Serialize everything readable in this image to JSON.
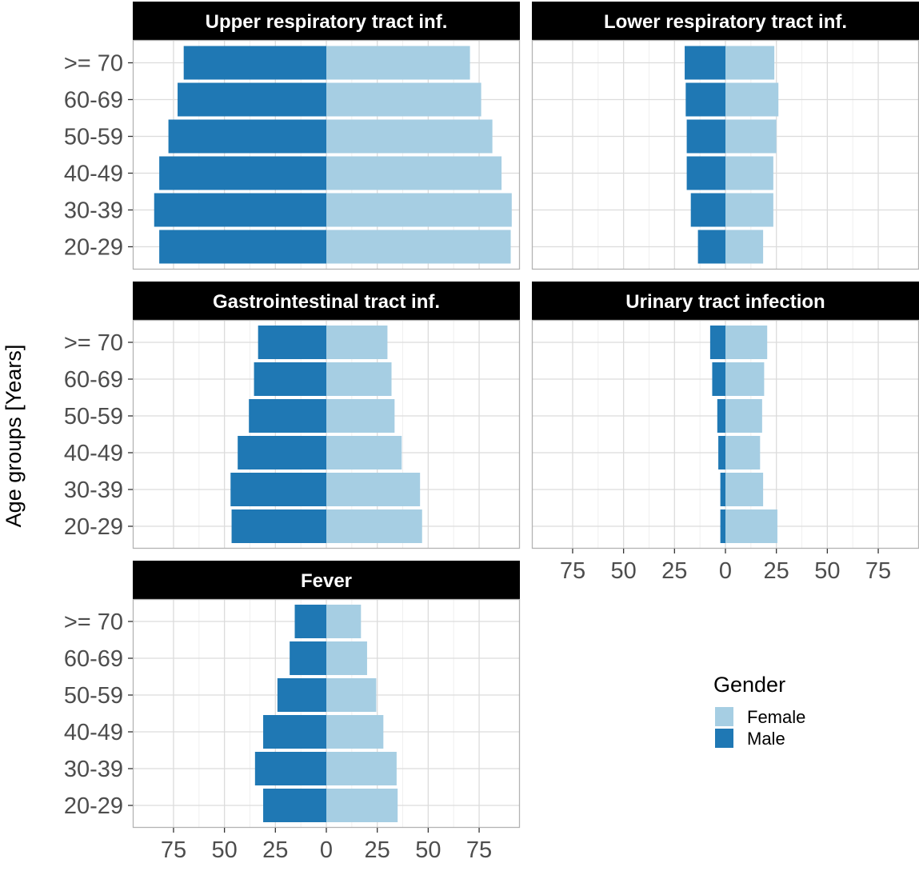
{
  "chart_data": {
    "type": "bar",
    "orientation": "horizontal",
    "layout": "faceted population pyramid",
    "y_label": "Age groups [Years]",
    "categories": [
      ">= 70",
      "60-69",
      "50-59",
      "40-49",
      "30-39",
      "20-29"
    ],
    "x_tick_labels": [
      "75",
      "50",
      "25",
      "0",
      "25",
      "50",
      "75"
    ],
    "x_ticks": [
      -75,
      -50,
      -25,
      0,
      25,
      50,
      75
    ],
    "xlim": [
      -95,
      95
    ],
    "grid": true,
    "legend": {
      "title": "Gender",
      "placement": "bottom-right",
      "items": [
        {
          "label": "Female",
          "color": "#a6cee3"
        },
        {
          "label": "Male",
          "color": "#1f78b4"
        }
      ]
    },
    "colors": {
      "Female": "#a6cee3",
      "Male": "#1f78b4",
      "strip_bg": "#000000",
      "strip_text": "#ffffff"
    },
    "panels": [
      {
        "title": "Upper respiratory tract inf.",
        "series": [
          {
            "name": "Male",
            "values": [
              -70,
              -73,
              -77.5,
              -82,
              -84.5,
              -82
            ]
          },
          {
            "name": "Female",
            "values": [
              70.5,
              76,
              81.5,
              86,
              91,
              90.5
            ]
          }
        ]
      },
      {
        "title": "Lower respiratory tract inf.",
        "series": [
          {
            "name": "Male",
            "values": [
              -20,
              -19.5,
              -19,
              -19,
              -17,
              -13.5
            ]
          },
          {
            "name": "Female",
            "values": [
              24,
              26,
              25,
              23.5,
              23.5,
              18.5
            ]
          }
        ]
      },
      {
        "title": "Gastrointestinal tract inf.",
        "series": [
          {
            "name": "Male",
            "values": [
              -33.5,
              -35.5,
              -38,
              -43.5,
              -47,
              -46.5
            ]
          },
          {
            "name": "Female",
            "values": [
              30,
              32,
              33.5,
              37,
              46,
              47
            ]
          }
        ]
      },
      {
        "title": "Urinary tract infection",
        "series": [
          {
            "name": "Male",
            "values": [
              -7.5,
              -6.5,
              -4,
              -3.5,
              -2.5,
              -2.5
            ]
          },
          {
            "name": "Female",
            "values": [
              20.5,
              19,
              18,
              17,
              18.5,
              25.5
            ]
          }
        ]
      },
      {
        "title": "Fever",
        "series": [
          {
            "name": "Male",
            "values": [
              -15.5,
              -18,
              -24,
              -31,
              -35,
              -31
            ]
          },
          {
            "name": "Female",
            "values": [
              17,
              20,
              24.5,
              28,
              34.5,
              35
            ]
          }
        ]
      }
    ]
  }
}
